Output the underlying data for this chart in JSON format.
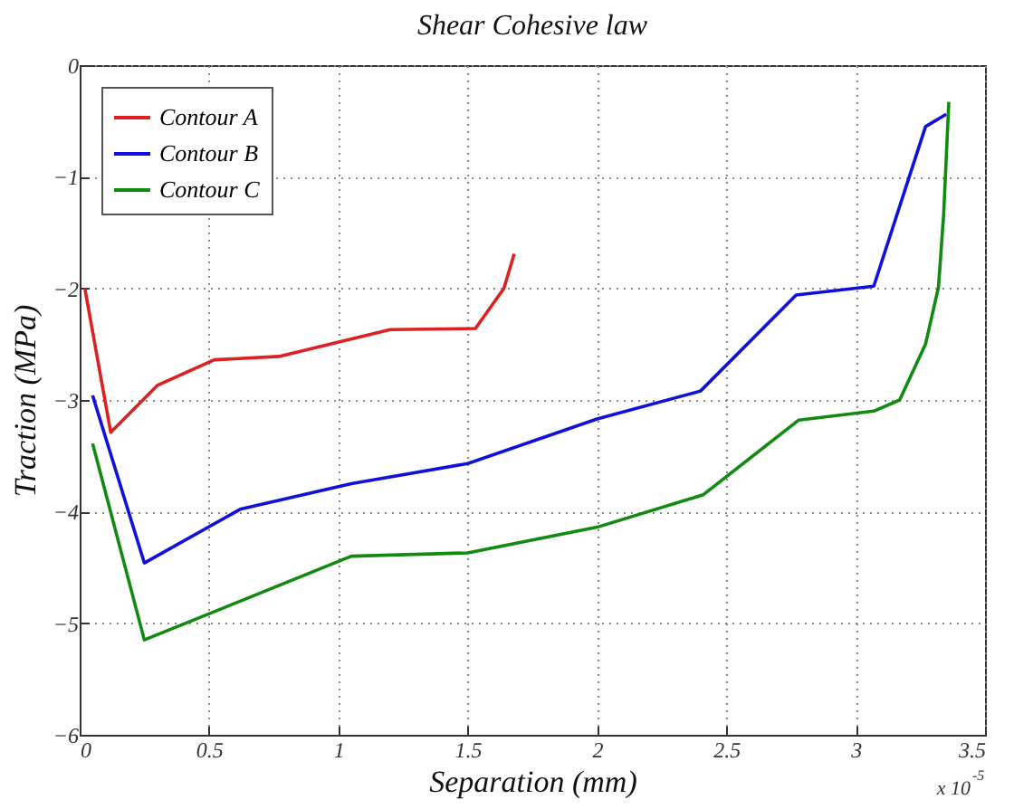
{
  "chart_data": {
    "type": "line",
    "title": "Shear Cohesive law",
    "xlabel": "Separation (mm)",
    "ylabel": "Traction (MPa)",
    "annotations": [
      "x 10$^{-5}$"
    ],
    "xlim": [
      0,
      3.5
    ],
    "xticks": [
      0,
      0.5,
      1,
      1.5,
      2,
      2.5,
      3,
      3.5
    ],
    "ylim": [
      -6,
      0
    ],
    "yticks": [
      -6,
      -5,
      -4,
      -3,
      -2,
      -1,
      0
    ],
    "grid": true,
    "legend": "top left",
    "marker": "none",
    "line_style": "solid",
    "series": [
      {
        "name": "Contour A",
        "color": "#dd2020",
        "x": [
          0.02,
          0.12,
          0.3,
          0.52,
          0.77,
          1.2,
          1.53,
          1.64,
          1.68
        ],
        "values": [
          -2.0,
          -3.29,
          -2.87,
          -2.64,
          -2.61,
          -2.37,
          -2.36,
          -2.0,
          -1.69
        ]
      },
      {
        "name": "Contour B",
        "color": "#1010dd",
        "x": [
          0.05,
          0.25,
          0.62,
          1.05,
          1.5,
          2.0,
          2.4,
          2.77,
          3.07,
          3.27,
          3.35
        ],
        "values": [
          -2.96,
          -4.46,
          -3.98,
          -3.75,
          -3.57,
          -3.17,
          -2.92,
          -2.06,
          -1.98,
          -0.55,
          -0.44
        ]
      },
      {
        "name": "Contour C",
        "color": "#108a10",
        "x": [
          0.05,
          0.25,
          1.05,
          1.5,
          2.0,
          2.41,
          2.78,
          3.07,
          3.17,
          3.27,
          3.32,
          3.34,
          3.36
        ],
        "values": [
          -3.39,
          -5.15,
          -4.4,
          -4.37,
          -4.14,
          -3.85,
          -3.18,
          -3.1,
          -3.0,
          -2.5,
          -1.99,
          -1.34,
          -0.33
        ]
      }
    ]
  }
}
